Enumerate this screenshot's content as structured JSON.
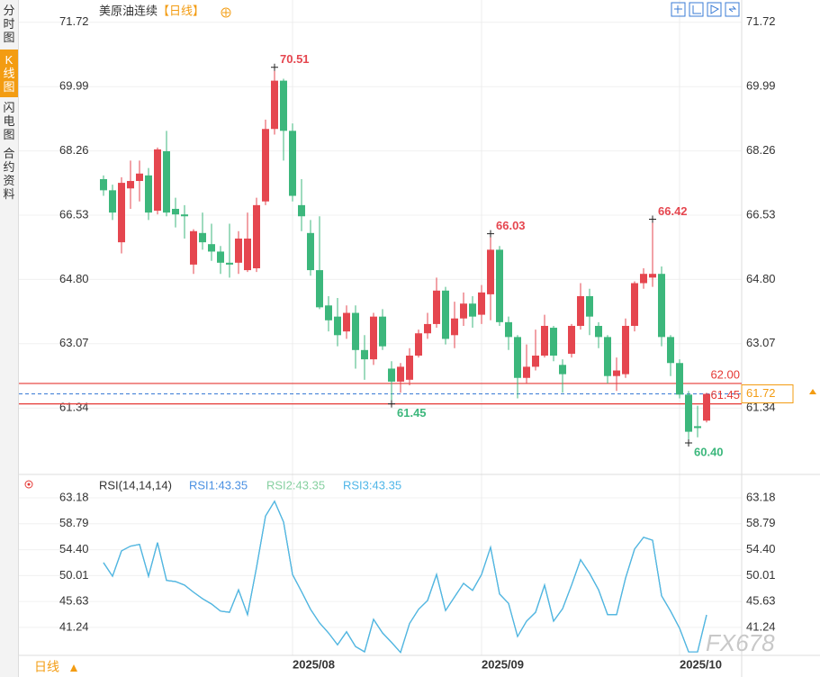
{
  "sidebar": {
    "tabs": [
      "分时图",
      "K线图",
      "闪电图",
      "合约资料"
    ]
  },
  "footer": {
    "period": "日线"
  },
  "watermark": "FX678",
  "chart_data": [
    {
      "type": "candlestick",
      "title": "美原油连续",
      "subtitle": "【日线】",
      "up_color": "#e5464f",
      "down_color": "#3cb77c",
      "open": [
        67.5,
        67.2,
        65.8,
        67.25,
        67.45,
        67.6,
        66.65,
        68.25,
        66.7,
        66.55,
        65.2,
        66.05,
        65.75,
        65.55,
        65.25,
        65.25,
        65.05,
        65.1,
        66.9,
        68.85,
        70.15,
        68.8,
        66.8,
        66.05,
        65.05,
        64.1,
        63.8,
        63.4,
        63.9,
        62.9,
        62.65,
        63.8,
        62.4,
        62.05,
        62.1,
        62.75,
        63.35,
        63.6,
        64.5,
        63.3,
        63.75,
        64.15,
        63.85,
        64.4,
        65.6,
        63.65,
        63.25,
        62.15,
        62.45,
        62.75,
        63.5,
        62.5,
        62.8,
        63.55,
        64.35,
        63.55,
        63.25,
        62.2,
        62.25,
        63.55,
        64.7,
        64.85,
        64.95,
        63.25,
        62.55,
        61.7,
        60.85,
        61.0
      ],
      "high": [
        67.6,
        67.35,
        67.55,
        68.0,
        68.0,
        67.8,
        68.35,
        68.8,
        67.0,
        66.8,
        66.15,
        66.6,
        66.3,
        65.7,
        66.3,
        66.1,
        66.6,
        67.0,
        69.1,
        70.51,
        70.2,
        69.0,
        67.5,
        66.4,
        66.5,
        64.35,
        64.3,
        64.1,
        64.1,
        63.3,
        63.9,
        64.0,
        62.6,
        62.55,
        62.95,
        63.45,
        63.9,
        64.85,
        64.6,
        64.2,
        64.45,
        64.35,
        64.65,
        66.03,
        65.7,
        63.8,
        63.3,
        63.05,
        63.45,
        63.85,
        63.55,
        62.65,
        63.6,
        64.7,
        64.55,
        63.65,
        63.3,
        62.7,
        63.75,
        64.75,
        65.1,
        66.42,
        65.15,
        63.3,
        62.65,
        61.8,
        61.4,
        61.75
      ],
      "low": [
        67.05,
        66.4,
        65.5,
        66.7,
        66.9,
        66.4,
        66.55,
        66.5,
        66.2,
        65.9,
        64.95,
        65.6,
        65.3,
        64.95,
        64.85,
        64.95,
        65.0,
        65.0,
        66.8,
        68.7,
        68.0,
        66.9,
        66.1,
        64.9,
        64.0,
        63.4,
        63.0,
        63.2,
        62.4,
        62.1,
        62.5,
        62.9,
        61.45,
        61.75,
        61.95,
        62.7,
        63.2,
        63.5,
        63.05,
        62.95,
        63.55,
        63.5,
        63.6,
        63.7,
        63.55,
        62.9,
        61.6,
        62.0,
        62.35,
        62.7,
        62.6,
        61.75,
        62.7,
        63.45,
        63.3,
        62.95,
        62.0,
        61.8,
        62.15,
        63.4,
        64.55,
        64.6,
        63.0,
        62.2,
        61.6,
        60.4,
        60.55,
        60.95
      ],
      "close": [
        67.2,
        66.6,
        67.4,
        67.45,
        67.65,
        66.6,
        68.3,
        66.6,
        66.55,
        66.5,
        66.1,
        65.8,
        65.55,
        65.25,
        65.2,
        65.9,
        65.9,
        66.8,
        68.85,
        70.15,
        68.8,
        67.05,
        66.5,
        65.05,
        64.05,
        63.7,
        63.3,
        63.9,
        62.9,
        62.65,
        63.8,
        63.0,
        62.05,
        62.45,
        62.75,
        63.35,
        63.6,
        64.5,
        63.2,
        63.75,
        64.15,
        63.8,
        64.45,
        65.6,
        63.65,
        63.25,
        62.15,
        62.45,
        62.75,
        63.55,
        62.75,
        62.25,
        63.55,
        64.35,
        63.8,
        63.25,
        62.2,
        62.35,
        63.55,
        64.7,
        64.95,
        64.95,
        63.25,
        62.55,
        61.7,
        60.7,
        60.8,
        61.72
      ],
      "ylim": [
        59.6,
        72.2
      ],
      "yticks": [
        71.72,
        69.99,
        68.26,
        66.53,
        {
          "value": 64.8,
          "label": "64.80"
        },
        63.07,
        61.34
      ],
      "grid": true,
      "extremes": [
        {
          "value": 70.51,
          "kind": "high"
        },
        {
          "value": 66.03,
          "kind": "high"
        },
        {
          "value": 66.42,
          "kind": "high"
        },
        {
          "value": 61.45,
          "kind": "low"
        },
        {
          "value": 60.4,
          "label": "60.40",
          "kind": "low"
        }
      ],
      "levels": [
        {
          "value": 62,
          "label": "62.00",
          "color": "#e53935"
        },
        {
          "value": 61.45,
          "color": "#e53935"
        }
      ],
      "last_price": 61.72,
      "last_color": "#3a7bd5"
    },
    {
      "type": "line",
      "title": "RSI(14,14,14)",
      "categories": [
        null,
        null,
        null,
        null,
        null,
        null,
        null,
        null,
        null,
        null,
        null,
        null,
        null,
        null,
        null,
        null,
        null,
        null,
        null,
        null,
        null,
        "2025/08",
        null,
        null,
        null,
        null,
        null,
        null,
        null,
        null,
        null,
        null,
        null,
        null,
        null,
        null,
        null,
        null,
        null,
        null,
        null,
        null,
        "2025/09",
        null,
        null,
        null,
        null,
        null,
        null,
        null,
        null,
        null,
        null,
        null,
        null,
        null,
        null,
        null,
        null,
        null,
        null,
        null,
        null,
        null,
        "2025/10",
        null,
        null,
        null
      ],
      "series": [
        {
          "name": "RSI1:43.35",
          "color": "#4a90e2",
          "values": [
            52.2,
            49.9,
            54.2,
            55.0,
            55.3,
            49.9,
            55.6,
            49.2,
            49.0,
            48.4,
            47.2,
            46.1,
            45.2,
            44.0,
            43.8,
            47.6,
            43.4,
            51.4,
            60.1,
            62.6,
            59.1,
            50.2,
            47.3,
            44.3,
            42.0,
            40.3,
            38.3,
            40.5,
            38.0,
            37.1,
            42.6,
            40.3,
            38.7,
            37.0,
            41.9,
            44.3,
            45.8,
            50.2,
            44.1,
            46.4,
            48.7,
            47.5,
            50.2,
            54.8,
            46.9,
            45.3,
            39.7,
            42.3,
            43.8,
            48.4,
            42.3,
            44.4,
            48.4,
            52.7,
            50.4,
            47.6,
            43.4,
            43.4,
            49.6,
            54.5,
            56.5,
            56.0,
            46.6,
            44.0,
            41.1,
            37.1,
            37.1,
            43.35
          ]
        },
        {
          "name": "RSI2:43.35",
          "color": "#86d0a0",
          "values": [
            52.2,
            49.9,
            54.2,
            55.0,
            55.3,
            49.9,
            55.6,
            49.2,
            49.0,
            48.4,
            47.2,
            46.1,
            45.2,
            44.0,
            43.8,
            47.6,
            43.4,
            51.4,
            60.1,
            62.6,
            59.1,
            50.2,
            47.3,
            44.3,
            42.0,
            40.3,
            38.3,
            40.5,
            38.0,
            37.1,
            42.6,
            40.3,
            38.7,
            37.0,
            41.9,
            44.3,
            45.8,
            50.2,
            44.1,
            46.4,
            48.7,
            47.5,
            50.2,
            54.8,
            46.9,
            45.3,
            39.7,
            42.3,
            43.8,
            48.4,
            42.3,
            44.4,
            48.4,
            52.7,
            50.4,
            47.6,
            43.4,
            43.4,
            49.6,
            54.5,
            56.5,
            56.0,
            46.6,
            44.0,
            41.1,
            37.1,
            37.1,
            43.35
          ]
        },
        {
          "name": "RSI3:43.35",
          "color": "#4fb6e8",
          "values": [
            52.2,
            49.9,
            54.2,
            55.0,
            55.3,
            49.9,
            55.6,
            49.2,
            49.0,
            48.4,
            47.2,
            46.1,
            45.2,
            44.0,
            43.8,
            47.6,
            43.4,
            51.4,
            60.1,
            62.6,
            59.1,
            50.2,
            47.3,
            44.3,
            42.0,
            40.3,
            38.3,
            40.5,
            38.0,
            37.1,
            42.6,
            40.3,
            38.7,
            37.0,
            41.9,
            44.3,
            45.8,
            50.2,
            44.1,
            46.4,
            48.7,
            47.5,
            50.2,
            54.8,
            46.9,
            45.3,
            39.7,
            42.3,
            43.8,
            48.4,
            42.3,
            44.4,
            48.4,
            52.7,
            50.4,
            47.6,
            43.4,
            43.4,
            49.6,
            54.5,
            56.5,
            56.0,
            46.6,
            44.0,
            41.1,
            37.1,
            37.1,
            43.35
          ]
        }
      ],
      "ylim": [
        36.5,
        64.0
      ],
      "yticks": [
        63.18,
        58.79,
        {
          "value": 54.4,
          "label": "54.40"
        },
        50.01,
        45.63,
        41.24
      ],
      "grid": true
    }
  ]
}
